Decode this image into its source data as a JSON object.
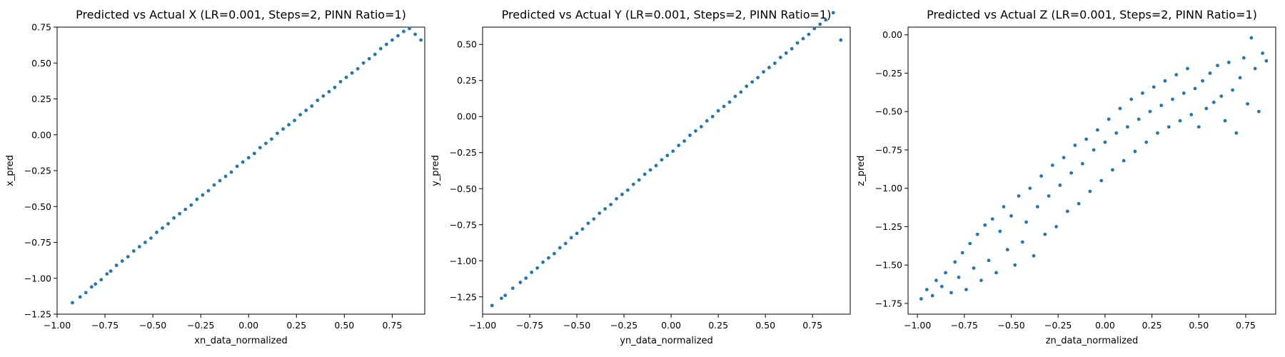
{
  "chart_data": [
    {
      "type": "scatter",
      "title": "Predicted vs Actual X (LR=0.001, Steps=2, PINN Ratio=1)",
      "xlabel": "xn_data_normalized",
      "ylabel": "x_pred",
      "xlim": [
        -1.0,
        0.92
      ],
      "ylim": [
        -1.25,
        0.75
      ],
      "xticks": [
        -1.0,
        -0.75,
        -0.5,
        -0.25,
        0.0,
        0.25,
        0.5,
        0.75
      ],
      "yticks": [
        -1.25,
        -1.0,
        -0.75,
        -0.5,
        -0.25,
        0.0,
        0.25,
        0.5,
        0.75
      ],
      "grid": false,
      "color": "#1f77b4",
      "series": [
        {
          "x": [
            -0.92,
            -0.88,
            -0.85,
            -0.82,
            -0.8,
            -0.77,
            -0.74,
            -0.72,
            -0.69,
            -0.66,
            -0.63,
            -0.6,
            -0.57,
            -0.54,
            -0.51,
            -0.48,
            -0.45,
            -0.42,
            -0.39,
            -0.36,
            -0.33,
            -0.3,
            -0.27,
            -0.24,
            -0.21,
            -0.18,
            -0.15,
            -0.12,
            -0.09,
            -0.06,
            -0.03,
            0.0,
            0.03,
            0.06,
            0.09,
            0.12,
            0.15,
            0.18,
            0.21,
            0.24,
            0.27,
            0.3,
            0.33,
            0.36,
            0.39,
            0.42,
            0.45,
            0.48,
            0.51,
            0.54,
            0.57,
            0.6,
            0.63,
            0.66,
            0.69,
            0.72,
            0.75,
            0.78,
            0.81,
            0.84,
            0.87,
            0.9
          ],
          "y": [
            -1.17,
            -1.13,
            -1.1,
            -1.06,
            -1.04,
            -1.01,
            -0.97,
            -0.95,
            -0.91,
            -0.88,
            -0.85,
            -0.81,
            -0.78,
            -0.75,
            -0.72,
            -0.68,
            -0.65,
            -0.62,
            -0.58,
            -0.55,
            -0.52,
            -0.49,
            -0.45,
            -0.42,
            -0.39,
            -0.35,
            -0.32,
            -0.29,
            -0.26,
            -0.22,
            -0.19,
            -0.16,
            -0.13,
            -0.09,
            -0.06,
            -0.03,
            0.01,
            0.04,
            0.07,
            0.1,
            0.14,
            0.17,
            0.2,
            0.24,
            0.27,
            0.3,
            0.33,
            0.37,
            0.4,
            0.43,
            0.46,
            0.5,
            0.53,
            0.56,
            0.6,
            0.63,
            0.66,
            0.69,
            0.72,
            0.74,
            0.7,
            0.66
          ]
        }
      ]
    },
    {
      "type": "scatter",
      "title": "Predicted vs Actual Y (LR=0.001, Steps=2, PINN Ratio=1)",
      "xlabel": "yn_data_normalized",
      "ylabel": "y_pred",
      "xlim": [
        -1.0,
        0.95
      ],
      "ylim": [
        -1.37,
        0.62
      ],
      "xticks": [
        -1.0,
        -0.75,
        -0.5,
        -0.25,
        0.0,
        0.25,
        0.5,
        0.75
      ],
      "yticks": [
        -1.25,
        -1.0,
        -0.75,
        -0.5,
        -0.25,
        0.0,
        0.25,
        0.5
      ],
      "grid": false,
      "color": "#1f77b4",
      "series": [
        {
          "x": [
            -0.95,
            -0.9,
            -0.88,
            -0.84,
            -0.8,
            -0.77,
            -0.74,
            -0.71,
            -0.68,
            -0.65,
            -0.62,
            -0.59,
            -0.56,
            -0.53,
            -0.5,
            -0.47,
            -0.44,
            -0.41,
            -0.38,
            -0.35,
            -0.32,
            -0.29,
            -0.26,
            -0.23,
            -0.2,
            -0.17,
            -0.14,
            -0.11,
            -0.08,
            -0.05,
            -0.02,
            0.01,
            0.04,
            0.07,
            0.1,
            0.13,
            0.16,
            0.19,
            0.22,
            0.25,
            0.28,
            0.31,
            0.34,
            0.37,
            0.4,
            0.43,
            0.46,
            0.49,
            0.52,
            0.55,
            0.58,
            0.61,
            0.64,
            0.67,
            0.7,
            0.73,
            0.76,
            0.79,
            0.82,
            0.86,
            0.9
          ],
          "y": [
            -1.31,
            -1.26,
            -1.24,
            -1.19,
            -1.15,
            -1.12,
            -1.08,
            -1.05,
            -1.01,
            -0.98,
            -0.95,
            -0.91,
            -0.88,
            -0.84,
            -0.81,
            -0.78,
            -0.74,
            -0.71,
            -0.67,
            -0.64,
            -0.61,
            -0.57,
            -0.54,
            -0.51,
            -0.47,
            -0.44,
            -0.4,
            -0.37,
            -0.34,
            -0.3,
            -0.27,
            -0.24,
            -0.2,
            -0.17,
            -0.13,
            -0.1,
            -0.07,
            -0.03,
            0.0,
            0.04,
            0.07,
            0.1,
            0.14,
            0.17,
            0.21,
            0.24,
            0.27,
            0.31,
            0.34,
            0.37,
            0.41,
            0.44,
            0.47,
            0.51,
            0.54,
            0.57,
            0.61,
            0.64,
            0.67,
            0.72,
            0.53
          ]
        }
      ]
    },
    {
      "type": "scatter",
      "title": "Predicted vs Actual Z (LR=0.001, Steps=2, PINN Ratio=1)",
      "xlabel": "zn_data_normalized",
      "ylabel": "z_pred",
      "xlim": [
        -1.05,
        0.91
      ],
      "ylim": [
        -1.82,
        0.05
      ],
      "xticks": [
        -1.0,
        -0.75,
        -0.5,
        -0.25,
        0.0,
        0.25,
        0.5,
        0.75
      ],
      "yticks": [
        -1.75,
        -1.5,
        -1.25,
        -1.0,
        -0.75,
        -0.5,
        -0.25,
        0.0
      ],
      "grid": false,
      "color": "#1f77b4",
      "series": [
        {
          "x": [
            -0.98,
            -0.95,
            -0.92,
            -0.9,
            -0.87,
            -0.85,
            -0.82,
            -0.8,
            -0.78,
            -0.76,
            -0.74,
            -0.72,
            -0.7,
            -0.68,
            -0.66,
            -0.64,
            -0.62,
            -0.6,
            -0.58,
            -0.56,
            -0.54,
            -0.52,
            -0.5,
            -0.48,
            -0.46,
            -0.44,
            -0.42,
            -0.4,
            -0.38,
            -0.36,
            -0.34,
            -0.32,
            -0.3,
            -0.28,
            -0.26,
            -0.24,
            -0.22,
            -0.2,
            -0.18,
            -0.16,
            -0.14,
            -0.12,
            -0.1,
            -0.08,
            -0.06,
            -0.04,
            -0.02,
            0.0,
            0.02,
            0.04,
            0.06,
            0.08,
            0.1,
            0.12,
            0.14,
            0.16,
            0.18,
            0.2,
            0.22,
            0.24,
            0.26,
            0.28,
            0.3,
            0.32,
            0.34,
            0.36,
            0.38,
            0.4,
            0.42,
            0.44,
            0.46,
            0.48,
            0.5,
            0.52,
            0.54,
            0.56,
            0.58,
            0.6,
            0.62,
            0.64,
            0.66,
            0.68,
            0.7,
            0.72,
            0.74,
            0.76,
            0.78,
            0.8,
            0.82,
            0.84,
            0.86
          ],
          "y": [
            -1.72,
            -1.66,
            -1.7,
            -1.6,
            -1.64,
            -1.55,
            -1.68,
            -1.48,
            -1.58,
            -1.42,
            -1.66,
            -1.36,
            -1.52,
            -1.3,
            -1.6,
            -1.24,
            -1.47,
            -1.2,
            -1.55,
            -1.28,
            -1.12,
            -1.4,
            -1.18,
            -1.5,
            -1.05,
            -1.35,
            -1.22,
            -1.0,
            -1.44,
            -1.12,
            -0.92,
            -1.3,
            -1.05,
            -0.85,
            -1.25,
            -0.98,
            -0.8,
            -1.15,
            -0.9,
            -0.72,
            -1.1,
            -0.84,
            -0.68,
            -1.02,
            -0.75,
            -0.62,
            -0.95,
            -0.7,
            -0.55,
            -0.88,
            -0.64,
            -0.48,
            -0.82,
            -0.6,
            -0.42,
            -0.76,
            -0.55,
            -0.38,
            -0.7,
            -0.5,
            -0.34,
            -0.64,
            -0.46,
            -0.3,
            -0.6,
            -0.42,
            -0.26,
            -0.56,
            -0.38,
            -0.22,
            -0.52,
            -0.35,
            -0.6,
            -0.3,
            -0.48,
            -0.25,
            -0.44,
            -0.2,
            -0.4,
            -0.56,
            -0.18,
            -0.36,
            -0.64,
            -0.28,
            -0.15,
            -0.45,
            -0.02,
            -0.22,
            -0.5,
            -0.12,
            -0.17
          ]
        }
      ]
    }
  ]
}
